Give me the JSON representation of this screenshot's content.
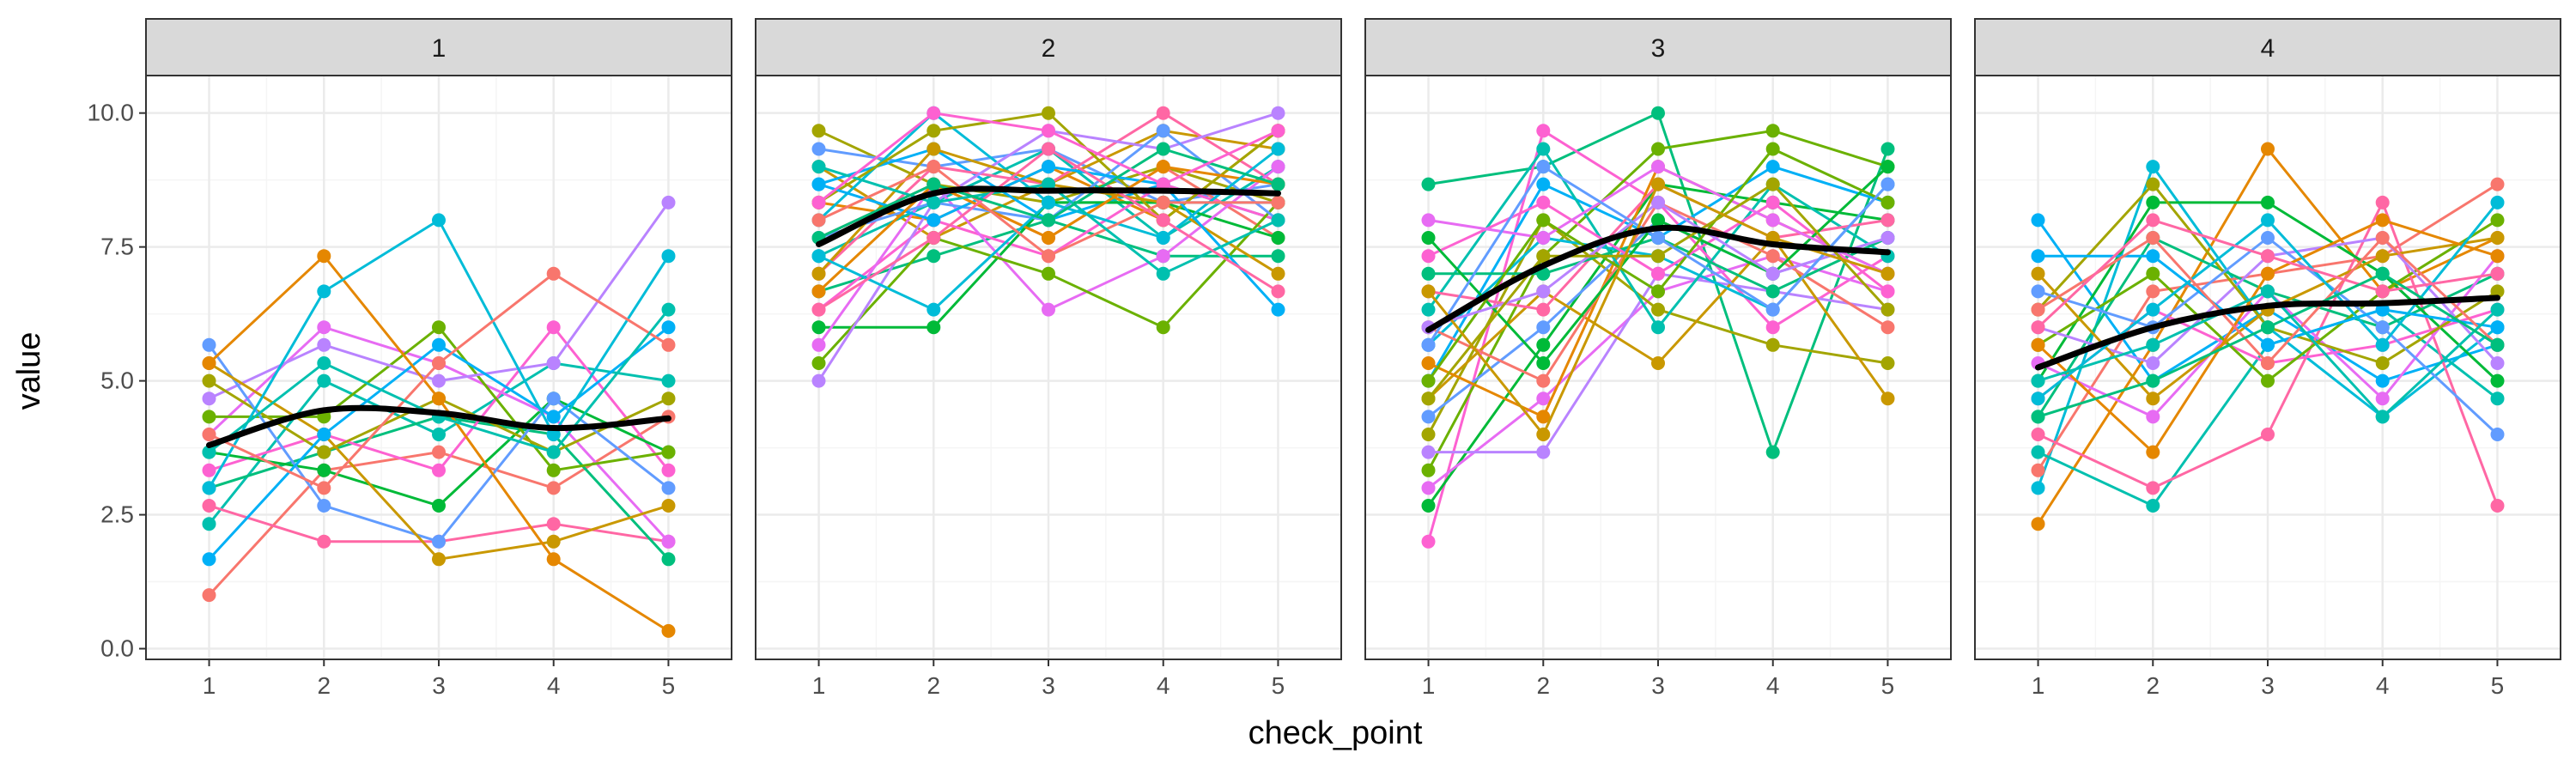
{
  "chart_data": {
    "type": "line",
    "facet_by": "group",
    "xlabel": "check_point",
    "ylabel": "value",
    "x": [
      1,
      2,
      3,
      4,
      5
    ],
    "x_tick_labels": [
      "1",
      "2",
      "3",
      "4",
      "5"
    ],
    "y_ticks": [
      0.0,
      2.5,
      5.0,
      7.5,
      10.0
    ],
    "y_tick_labels": [
      "0.0",
      "2.5",
      "5.0",
      "7.5",
      "10.0"
    ],
    "xlim": [
      0.45,
      5.55
    ],
    "ylim": [
      -0.2,
      10.7
    ],
    "grid": true,
    "legend": "none",
    "theme": "bw",
    "colors": {
      "smooth_line": "#000000",
      "panel_border": "#333333",
      "strip_fill": "#d9d9d9",
      "grid_major": "#ebebeb",
      "grid_minor": "#f5f5f5"
    },
    "series_palette": [
      "#F8766D",
      "#E58700",
      "#C99800",
      "#A3A500",
      "#6BB100",
      "#00BA38",
      "#00BF7D",
      "#00C0AF",
      "#00BCD8",
      "#00B0F6",
      "#619CFF",
      "#B983FF",
      "#E76BF3",
      "#FD61D1",
      "#FF67A4"
    ],
    "facets": [
      {
        "label": "1",
        "smooth": [
          3.8,
          4.45,
          4.4,
          4.12,
          4.3
        ],
        "series": [
          [
            1.0,
            3.33,
            3.67,
            3.0,
            4.33
          ],
          [
            2.33,
            5.0,
            4.0,
            5.33,
            5.0
          ],
          [
            2.67,
            2.0,
            2.0,
            2.33,
            2.0
          ],
          [
            3.0,
            3.67,
            4.33,
            4.0,
            1.67
          ],
          [
            3.33,
            4.0,
            3.33,
            6.0,
            3.33
          ],
          [
            3.67,
            3.33,
            2.67,
            4.67,
            3.67
          ],
          [
            4.0,
            6.0,
            5.33,
            4.33,
            2.0
          ],
          [
            4.33,
            4.33,
            6.0,
            3.33,
            3.67
          ],
          [
            4.67,
            5.67,
            5.0,
            5.33,
            8.33
          ],
          [
            5.0,
            3.67,
            4.67,
            3.67,
            4.67
          ],
          [
            5.67,
            2.67,
            2.0,
            4.67,
            3.0
          ],
          [
            5.33,
            4.0,
            1.67,
            2.0,
            2.67
          ],
          [
            1.67,
            4.0,
            5.67,
            4.33,
            6.0
          ],
          [
            5.33,
            7.33,
            4.67,
            1.67,
            0.33
          ],
          [
            3.0,
            6.67,
            8.0,
            4.0,
            7.33
          ],
          [
            4.0,
            3.0,
            5.33,
            7.0,
            5.67
          ],
          [
            3.67,
            5.33,
            4.33,
            3.67,
            6.33
          ]
        ]
      },
      {
        "label": "2",
        "smooth": [
          7.55,
          8.5,
          8.55,
          8.55,
          8.5
        ],
        "series": [
          [
            9.67,
            8.67,
            8.33,
            9.0,
            8.33
          ],
          [
            9.33,
            9.0,
            9.33,
            8.33,
            8.67
          ],
          [
            9.0,
            7.67,
            8.67,
            9.67,
            9.33
          ],
          [
            8.67,
            9.33,
            8.0,
            8.67,
            8.0
          ],
          [
            8.33,
            8.0,
            9.0,
            8.0,
            9.67
          ],
          [
            8.0,
            10.0,
            8.33,
            8.33,
            8.33
          ],
          [
            7.67,
            8.67,
            7.67,
            9.0,
            7.67
          ],
          [
            7.33,
            8.33,
            9.33,
            7.67,
            9.0
          ],
          [
            7.0,
            9.0,
            8.67,
            10.0,
            8.67
          ],
          [
            6.67,
            7.33,
            8.0,
            7.33,
            7.33
          ],
          [
            6.33,
            8.0,
            7.33,
            8.67,
            8.0
          ],
          [
            6.0,
            6.0,
            8.33,
            8.33,
            7.67
          ],
          [
            5.67,
            8.67,
            6.33,
            7.33,
            9.0
          ],
          [
            5.33,
            7.67,
            7.0,
            6.0,
            8.33
          ],
          [
            5.0,
            8.33,
            9.67,
            9.33,
            10.0
          ],
          [
            8.33,
            9.67,
            10.0,
            8.0,
            9.67
          ],
          [
            7.67,
            8.33,
            8.0,
            9.67,
            8.0
          ],
          [
            7.0,
            9.33,
            8.67,
            8.33,
            7.0
          ],
          [
            8.67,
            8.0,
            9.0,
            8.67,
            6.33
          ],
          [
            6.67,
            8.67,
            7.67,
            9.0,
            8.67
          ],
          [
            7.33,
            6.33,
            8.33,
            7.67,
            9.33
          ],
          [
            8.0,
            9.0,
            7.33,
            8.33,
            8.33
          ],
          [
            9.0,
            8.33,
            8.67,
            7.0,
            8.0
          ],
          [
            6.33,
            7.67,
            9.33,
            8.0,
            6.67
          ],
          [
            7.67,
            8.67,
            8.0,
            9.33,
            8.67
          ],
          [
            8.33,
            10.0,
            9.67,
            8.67,
            9.67
          ]
        ]
      },
      {
        "label": "3",
        "smooth": [
          5.95,
          7.15,
          7.85,
          7.55,
          7.4
        ],
        "series": [
          [
            8.67,
            9.0,
            10.0,
            3.67,
            9.33
          ],
          [
            2.0,
            9.67,
            8.33,
            6.0,
            7.33
          ],
          [
            2.67,
            5.67,
            8.67,
            8.33,
            8.0
          ],
          [
            3.0,
            4.67,
            6.67,
            7.33,
            6.67
          ],
          [
            3.33,
            7.33,
            9.33,
            9.67,
            9.0
          ],
          [
            3.67,
            3.67,
            7.0,
            6.67,
            6.33
          ],
          [
            4.0,
            8.0,
            6.33,
            5.67,
            5.33
          ],
          [
            4.33,
            6.0,
            8.0,
            7.0,
            7.67
          ],
          [
            4.67,
            6.67,
            5.33,
            7.67,
            4.67
          ],
          [
            5.0,
            8.67,
            7.67,
            9.0,
            8.33
          ],
          [
            5.33,
            4.33,
            9.0,
            8.0,
            7.0
          ],
          [
            5.67,
            7.67,
            7.33,
            6.33,
            8.67
          ],
          [
            6.0,
            5.0,
            8.33,
            7.33,
            6.0
          ],
          [
            6.33,
            9.33,
            6.0,
            8.67,
            7.33
          ],
          [
            6.67,
            6.33,
            8.67,
            7.67,
            8.0
          ],
          [
            7.0,
            7.0,
            7.67,
            6.67,
            7.67
          ],
          [
            7.33,
            8.33,
            7.0,
            8.33,
            6.67
          ],
          [
            7.67,
            5.33,
            8.0,
            7.0,
            9.0
          ],
          [
            8.0,
            7.67,
            9.0,
            8.0,
            7.0
          ],
          [
            5.0,
            8.0,
            6.67,
            9.33,
            8.33
          ],
          [
            6.0,
            6.67,
            8.33,
            7.0,
            7.67
          ],
          [
            4.67,
            7.33,
            7.33,
            8.67,
            6.33
          ],
          [
            5.67,
            9.0,
            7.67,
            6.33,
            8.67
          ],
          [
            6.67,
            4.0,
            8.67,
            7.67,
            7.0
          ]
        ]
      },
      {
        "label": "4",
        "smooth": [
          5.25,
          6.0,
          6.4,
          6.45,
          6.55
        ],
        "series": [
          [
            8.0,
            5.0,
            6.33,
            5.0,
            5.67
          ],
          [
            2.33,
            5.67,
            9.33,
            6.67,
            7.67
          ],
          [
            3.0,
            9.0,
            6.0,
            4.33,
            6.0
          ],
          [
            3.33,
            6.67,
            7.0,
            7.33,
            8.67
          ],
          [
            3.67,
            2.67,
            5.67,
            6.33,
            4.67
          ],
          [
            4.0,
            3.0,
            4.0,
            8.33,
            2.67
          ],
          [
            4.33,
            7.67,
            6.67,
            6.0,
            7.0
          ],
          [
            4.67,
            6.33,
            5.33,
            5.67,
            6.33
          ],
          [
            5.0,
            8.33,
            8.33,
            7.0,
            5.0
          ],
          [
            5.33,
            4.33,
            6.67,
            4.67,
            7.33
          ],
          [
            5.67,
            7.0,
            5.0,
            6.67,
            8.0
          ],
          [
            6.0,
            5.33,
            7.33,
            7.67,
            5.33
          ],
          [
            6.33,
            8.67,
            6.0,
            5.33,
            6.67
          ],
          [
            6.67,
            6.0,
            7.67,
            6.0,
            4.0
          ],
          [
            7.0,
            4.67,
            6.33,
            7.33,
            7.67
          ],
          [
            7.33,
            7.33,
            5.67,
            6.33,
            6.0
          ],
          [
            5.67,
            3.67,
            7.0,
            8.0,
            7.33
          ],
          [
            4.67,
            6.33,
            8.0,
            5.67,
            8.33
          ],
          [
            6.33,
            7.67,
            5.33,
            7.67,
            5.67
          ],
          [
            5.0,
            5.67,
            6.67,
            4.33,
            6.33
          ],
          [
            6.0,
            8.0,
            7.33,
            6.67,
            7.0
          ],
          [
            4.33,
            5.0,
            6.0,
            7.0,
            5.67
          ]
        ]
      }
    ]
  }
}
